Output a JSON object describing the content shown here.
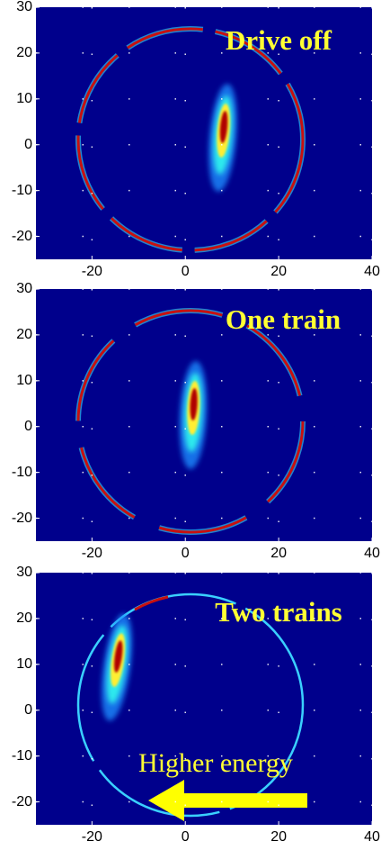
{
  "chart_data": [
    {
      "type": "heatmap",
      "annotation": "Drive off",
      "xlim": [
        -32,
        40
      ],
      "ylim": [
        -25,
        30
      ],
      "xticks": [
        -20,
        0,
        20,
        40
      ],
      "yticks": [
        -20,
        -10,
        0,
        10,
        20,
        30
      ],
      "grid": true
    },
    {
      "type": "heatmap",
      "annotation": "One train",
      "xlim": [
        -32,
        40
      ],
      "ylim": [
        -25,
        30
      ],
      "xticks": [
        -20,
        0,
        20,
        40
      ],
      "yticks": [
        -20,
        -10,
        0,
        10,
        20,
        30
      ],
      "grid": true
    },
    {
      "type": "heatmap",
      "annotation": "Two trains",
      "arrow_label": "Higher energy",
      "xlim": [
        -32,
        40
      ],
      "ylim": [
        -25,
        30
      ],
      "xticks": [
        -20,
        0,
        20,
        40
      ],
      "yticks": [
        -20,
        -10,
        0,
        10,
        20,
        30
      ],
      "grid": true
    }
  ]
}
